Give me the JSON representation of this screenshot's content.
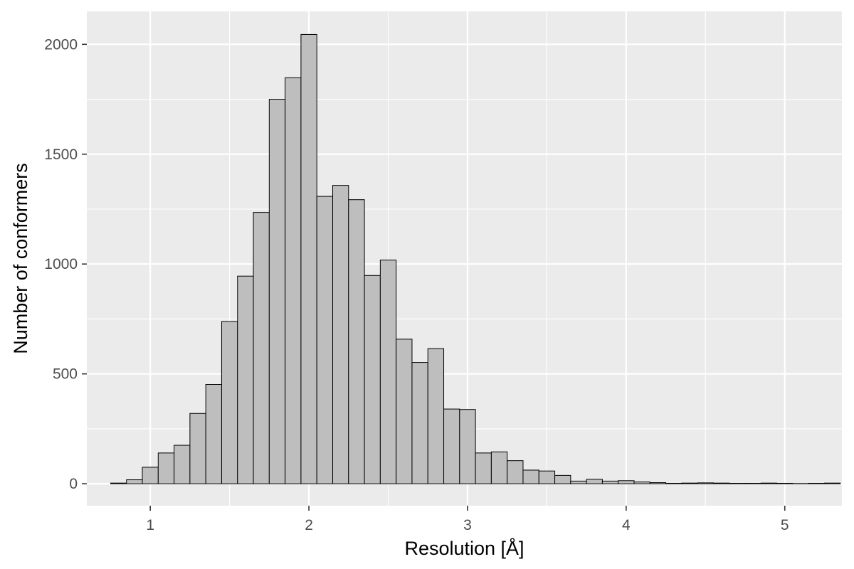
{
  "chart_data": {
    "type": "bar",
    "title": "",
    "xlabel": "Resolution [Å]",
    "ylabel": "Number of conformers",
    "xlim": [
      0.6,
      5.36
    ],
    "ylim": [
      -100,
      2150
    ],
    "xticks": [
      "1",
      "2",
      "3",
      "4",
      "5"
    ],
    "xtick_values": [
      1,
      2,
      3,
      4,
      5
    ],
    "yticks": [
      "0",
      "500",
      "1000",
      "1500",
      "2000"
    ],
    "ytick_values": [
      0,
      500,
      1000,
      1500,
      2000
    ],
    "grid": true,
    "bin_width": 0.1,
    "bin_start": 0.75,
    "values": [
      3,
      18,
      75,
      140,
      175,
      320,
      452,
      738,
      945,
      1235,
      1750,
      1848,
      2045,
      1308,
      1358,
      1293,
      948,
      1018,
      658,
      552,
      615,
      340,
      338,
      140,
      145,
      105,
      62,
      58,
      38,
      12,
      20,
      12,
      14,
      8,
      5,
      2,
      3,
      4,
      3,
      2,
      2,
      3,
      2,
      1,
      2,
      3
    ],
    "colors": {
      "panel_background": "#ebebeb",
      "grid_major": "#ffffff",
      "bar_fill": "#bebebe",
      "bar_stroke": "#000000"
    }
  }
}
